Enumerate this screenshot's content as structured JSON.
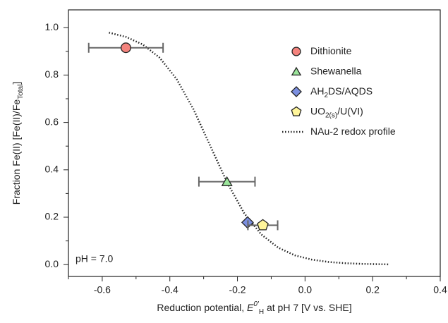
{
  "chart_data": {
    "type": "scatter",
    "xlabel": [
      {
        "text": "Reduction potential, "
      },
      {
        "text": "E",
        "italic": true
      },
      {
        "text": "0'",
        "sup": true,
        "italic": true
      },
      {
        "text": "H",
        "sub": true
      },
      {
        "text": " at pH 7 [V vs. SHE]"
      }
    ],
    "ylabel": [
      {
        "text": "Fraction Fe(II) [Fe(II)/Fe"
      },
      {
        "text": "Total",
        "sub": true
      },
      {
        "text": "]"
      }
    ],
    "annotation": "pH = 7.0",
    "xlim": [
      -0.7,
      0.4
    ],
    "ylim": [
      -0.05,
      1.075
    ],
    "xticks": [
      -0.6,
      -0.4,
      -0.2,
      {
        "value": 0,
        "label": "0.0"
      },
      0.2,
      0.4
    ],
    "yticks": [
      {
        "value": 0,
        "label": "0.0"
      },
      0.2,
      0.4,
      0.6,
      0.8,
      {
        "value": 1,
        "label": "1.0"
      }
    ],
    "xminorticks": [
      -0.7,
      -0.5,
      -0.3,
      -0.1,
      0.1,
      0.3
    ],
    "yminorticks": [
      0.1,
      0.3,
      0.5,
      0.7,
      0.9
    ],
    "legend": "upper right",
    "series": [
      {
        "name": [
          {
            "text": "Dithionite"
          }
        ],
        "marker": "circle",
        "color": "#f4837d",
        "x": [
          -0.53
        ],
        "values": [
          0.915
        ],
        "xerr": [
          0.11
        ]
      },
      {
        "name": [
          {
            "text": "Shewanella"
          }
        ],
        "marker": "triangle",
        "color": "#9be59b",
        "x": [
          -0.231
        ],
        "values": [
          0.35
        ],
        "xerr": [
          0.083
        ]
      },
      {
        "name": [
          {
            "text": "AH"
          },
          {
            "text": "2",
            "sub": true
          },
          {
            "text": "DS/AQDS"
          }
        ],
        "marker": "diamond",
        "color": "#7b8fe0",
        "x": [
          -0.17
        ],
        "values": [
          0.178
        ],
        "xerr": [
          null
        ]
      },
      {
        "name": [
          {
            "text": "UO"
          },
          {
            "text": "2(s)",
            "sub": true
          },
          {
            "text": "/U(VI)"
          }
        ],
        "marker": "pentagon",
        "color": "#fff59a",
        "x": [
          -0.125
        ],
        "values": [
          0.166
        ],
        "xerr": [
          0.044
        ]
      }
    ],
    "line": {
      "name": [
        {
          "text": "NAu-2 redox profile"
        }
      ],
      "color": "#222222",
      "style": "dotted",
      "x": [
        -0.58,
        -0.53,
        -0.48,
        -0.43,
        -0.38,
        -0.33,
        -0.28,
        -0.23,
        -0.18,
        -0.13,
        -0.08,
        -0.03,
        0.02,
        0.07,
        0.12,
        0.17,
        0.25
      ],
      "values": [
        0.979,
        0.961,
        0.929,
        0.873,
        0.783,
        0.655,
        0.5,
        0.345,
        0.217,
        0.128,
        0.072,
        0.039,
        0.021,
        0.011,
        0.006,
        0.003,
        0.001
      ]
    }
  }
}
